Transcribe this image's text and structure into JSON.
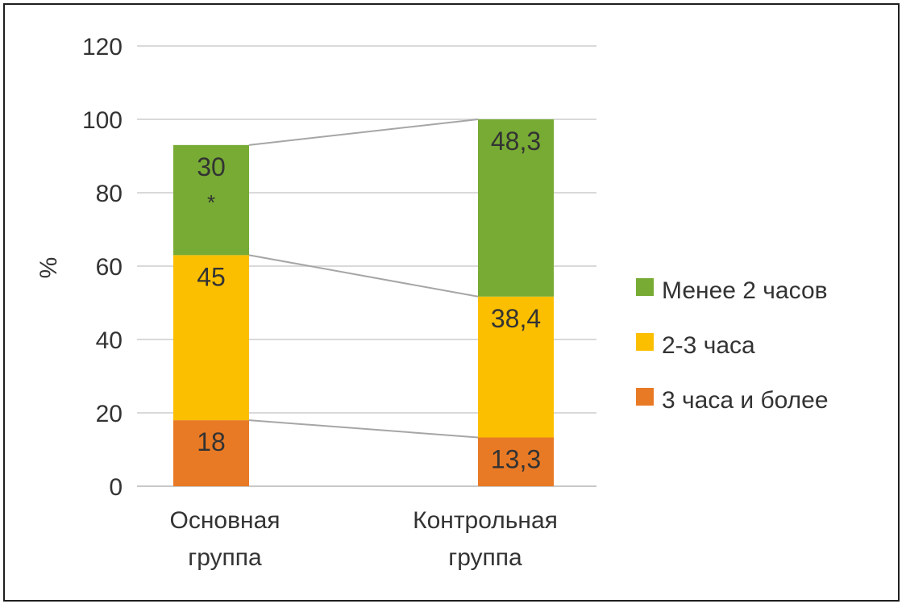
{
  "chart_data": {
    "type": "bar",
    "stacked": true,
    "title": "",
    "xlabel": "",
    "ylabel": "%",
    "ylim": [
      0,
      120
    ],
    "yticks": [
      0,
      20,
      40,
      60,
      80,
      100,
      120
    ],
    "grid": true,
    "legend_position": "right",
    "categories": [
      [
        "Основная",
        "группа"
      ],
      [
        "Контрольная",
        "группа"
      ]
    ],
    "series": [
      {
        "name": "3 часа и более",
        "color": "#E97A25",
        "values": [
          18,
          13.3
        ],
        "labels": [
          "18",
          "13,3"
        ]
      },
      {
        "name": "2-3 часа",
        "color": "#FBBF00",
        "values": [
          45,
          38.4
        ],
        "labels": [
          "45",
          "38,4"
        ]
      },
      {
        "name": "Менее 2 часов",
        "color": "#77AB34",
        "values": [
          30,
          48.3
        ],
        "labels": [
          "30",
          "48,3"
        ]
      }
    ],
    "annotations": [
      {
        "category_index": 0,
        "series_index": 2,
        "text": "*"
      }
    ],
    "legend_order": [
      2,
      1,
      0
    ]
  }
}
